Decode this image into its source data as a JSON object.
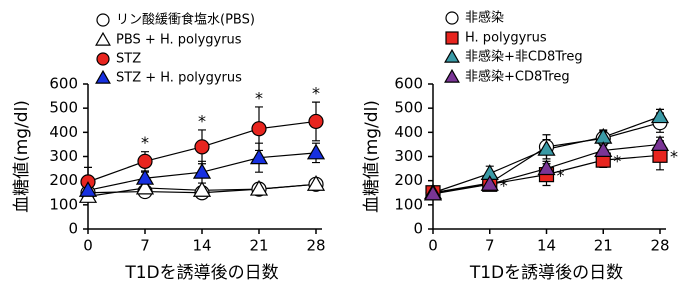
{
  "chart_data": [
    {
      "type": "line",
      "xlabel": "T1Dを誘導後の日数",
      "ylabel": "血糖値(mg/dl)",
      "x": [
        0,
        7,
        14,
        21,
        28
      ],
      "xlim": [
        0,
        28
      ],
      "xticks": [
        0,
        7,
        14,
        21,
        28
      ],
      "ylim": [
        0,
        600
      ],
      "yticks": [
        0,
        100,
        200,
        300,
        400,
        500,
        600
      ],
      "series": [
        {
          "name": "リン酸緩衝食塩水(PBS)",
          "color": "#ffffff",
          "marker": "circle",
          "values": [
            150,
            155,
            150,
            165,
            185
          ],
          "errors": [
            20,
            10,
            15,
            15,
            15
          ]
        },
        {
          "name": "PBS + H. polygyrus",
          "color": "#ffffff",
          "marker": "triangle",
          "values": [
            135,
            170,
            160,
            165,
            185
          ],
          "errors": [
            20,
            15,
            15,
            10,
            15
          ]
        },
        {
          "name": "STZ",
          "color": "#e8251f",
          "marker": "circle",
          "values": [
            195,
            280,
            340,
            415,
            445
          ],
          "errors": [
            60,
            40,
            70,
            90,
            80
          ]
        },
        {
          "name": "STZ + H. polygyrus",
          "color": "#1730e0",
          "marker": "triangle",
          "values": [
            160,
            210,
            235,
            295,
            315
          ],
          "errors": [
            30,
            25,
            45,
            60,
            40
          ]
        }
      ],
      "annotations": [
        {
          "text": "*",
          "x": 7
        },
        {
          "text": "*",
          "x": 14
        },
        {
          "text": "*",
          "x": 21
        },
        {
          "text": "*",
          "x": 28
        }
      ]
    },
    {
      "type": "line",
      "xlabel": "T1Dを誘導後の日数",
      "ylabel": "血糖値(mg/dl)",
      "x": [
        0,
        7,
        14,
        21,
        28
      ],
      "xlim": [
        0,
        28
      ],
      "xticks": [
        0,
        7,
        14,
        21,
        28
      ],
      "ylim": [
        0,
        600
      ],
      "yticks": [
        0,
        100,
        200,
        300,
        400,
        500,
        600
      ],
      "series": [
        {
          "name": "非感染",
          "color": "#ffffff",
          "marker": "circle",
          "values": [
            150,
            190,
            340,
            375,
            440
          ],
          "errors": [
            20,
            20,
            50,
            30,
            40
          ]
        },
        {
          "name": "H. polygyrus",
          "color": "#e8251f",
          "marker": "square",
          "values": [
            150,
            185,
            225,
            285,
            305
          ],
          "errors": [
            20,
            20,
            45,
            30,
            60
          ]
        },
        {
          "name": "非感染+非CD8Treg",
          "color": "#3a9aa6",
          "marker": "triangle",
          "values": [
            150,
            230,
            330,
            380,
            465
          ],
          "errors": [
            20,
            30,
            40,
            30,
            30
          ]
        },
        {
          "name": "非感染+CD8Treg",
          "color": "#7a3595",
          "marker": "triangle",
          "values": [
            145,
            185,
            250,
            325,
            350
          ],
          "errors": [
            20,
            20,
            30,
            40,
            30
          ]
        }
      ],
      "annotations": [
        {
          "text": "*",
          "x": 7
        },
        {
          "text": "*",
          "x": 14
        },
        {
          "text": "*",
          "x": 21
        },
        {
          "text": "*",
          "x": 28
        }
      ]
    }
  ]
}
